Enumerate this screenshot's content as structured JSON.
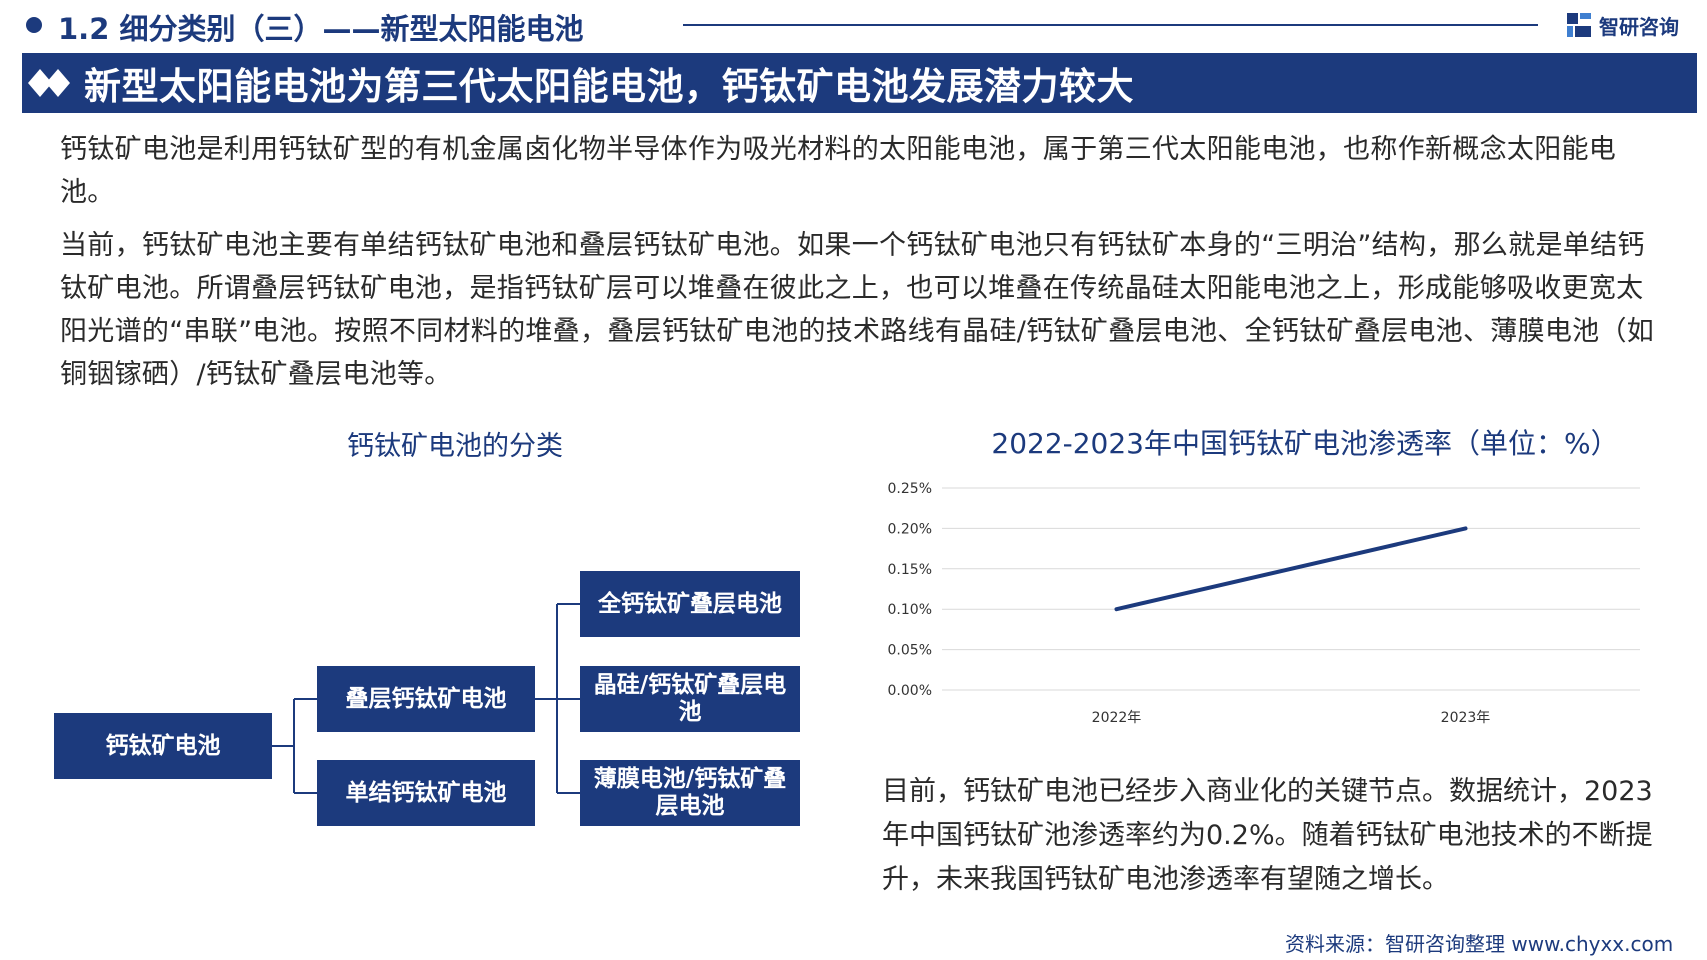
{
  "header": {
    "section_title": "1.2 细分类别（三）——新型太阳能电池",
    "logo_text": "智研咨询"
  },
  "banner": {
    "title": "新型太阳能电池为第三代太阳能电池，钙钛矿电池发展潜力较大"
  },
  "paragraphs": {
    "p1": "钙钛矿电池是利用钙钛矿型的有机金属卤化物半导体作为吸光材料的太阳能电池，属于第三代太阳能电池，也称作新概念太阳能电池。",
    "p2": "当前，钙钛矿电池主要有单结钙钛矿电池和叠层钙钛矿电池。如果一个钙钛矿电池只有钙钛矿本身的“三明治”结构，那么就是单结钙钛矿电池。所谓叠层钙钛矿电池，是指钙钛矿层可以堆叠在彼此之上，也可以堆叠在传统晶硅太阳能电池之上，形成能够吸收更宽太阳光谱的“串联”电池。按照不同材料的堆叠，叠层钙钛矿电池的技术路线有晶硅/钙钛矿叠层电池、全钙钛矿叠层电池、薄膜电池（如铜铟镓硒）/钙钛矿叠层电池等。",
    "p3": "目前，钙钛矿电池已经步入商业化的关键节点。数据统计，2023年中国钙钛矿池渗透率约为0.2%。随着钙钛矿电池技术的不断提升，未来我国钙钛矿电池渗透率有望随之增长。"
  },
  "tree": {
    "title": "钙钛矿电池的分类",
    "root": "钙钛矿电池",
    "level1": [
      "叠层钙钛矿电池",
      "单结钙钛矿电池"
    ],
    "level2": [
      "全钙钛矿叠层电池",
      "晶硅/钙钛矿叠层电池",
      "薄膜电池/钙钛矿叠层电池"
    ]
  },
  "chart_data": {
    "type": "line",
    "title": "2022-2023年中国钙钛矿电池渗透率（单位：%）",
    "x": [
      "2022年",
      "2023年"
    ],
    "series": [
      {
        "values": [
          0.1,
          0.2
        ]
      }
    ],
    "ylim": [
      0,
      0.25
    ],
    "yticks": [
      "0.00%",
      "0.05%",
      "0.10%",
      "0.15%",
      "0.20%",
      "0.25%"
    ],
    "grid": true,
    "line_color": "#1c3a7d"
  },
  "footer": {
    "source": "资料来源：智研咨询整理   www.chyxx.com"
  },
  "colors": {
    "primary": "#1c3a7d",
    "accent": "#3f7fd0"
  }
}
